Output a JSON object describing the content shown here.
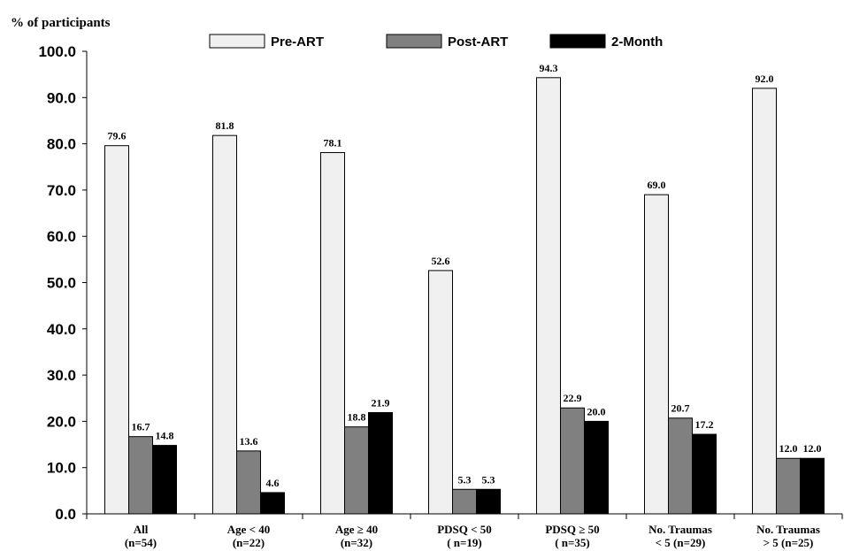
{
  "chart_data": {
    "type": "bar",
    "ylabel": "% of participants",
    "xlabel": "",
    "ylim": [
      0,
      100
    ],
    "yticks": [
      "0.0",
      "10.0",
      "20.0",
      "30.0",
      "40.0",
      "50.0",
      "60.0",
      "70.0",
      "80.0",
      "90.0",
      "100.0"
    ],
    "grid": false,
    "legend_position": "top",
    "categories": [
      [
        "All",
        "(n=54)"
      ],
      [
        "Age < 40",
        "(n=22)"
      ],
      [
        "Age ≥ 40",
        "(n=32)"
      ],
      [
        "PDSQ < 50",
        "( n=19)"
      ],
      [
        "PDSQ ≥ 50",
        "( n=35)"
      ],
      [
        "No. Traumas",
        "< 5 (n=29)"
      ],
      [
        "No. Traumas",
        "> 5 (n=25)"
      ]
    ],
    "series": [
      {
        "name": "Pre-ART",
        "color": "#f0f0f0",
        "values": [
          79.6,
          81.8,
          78.1,
          52.6,
          94.3,
          69.0,
          92.0
        ],
        "labels": [
          "79.6",
          "81.8",
          "78.1",
          "52.6",
          "94.3",
          "69.0",
          "92.0"
        ]
      },
      {
        "name": "Post-ART",
        "color": "#808080",
        "values": [
          16.7,
          13.6,
          18.8,
          5.3,
          22.9,
          20.7,
          12.0
        ],
        "labels": [
          "16.7",
          "13.6",
          "18.8",
          "5.3",
          "22.9",
          "20.7",
          "12.0"
        ]
      },
      {
        "name": "2-Month",
        "color": "#000000",
        "values": [
          14.8,
          4.6,
          21.9,
          5.3,
          20.0,
          17.2,
          12.0
        ],
        "labels": [
          "14.8",
          "4.6",
          "21.9",
          "5.3",
          "20.0",
          "17.2",
          "12.0"
        ]
      }
    ]
  }
}
